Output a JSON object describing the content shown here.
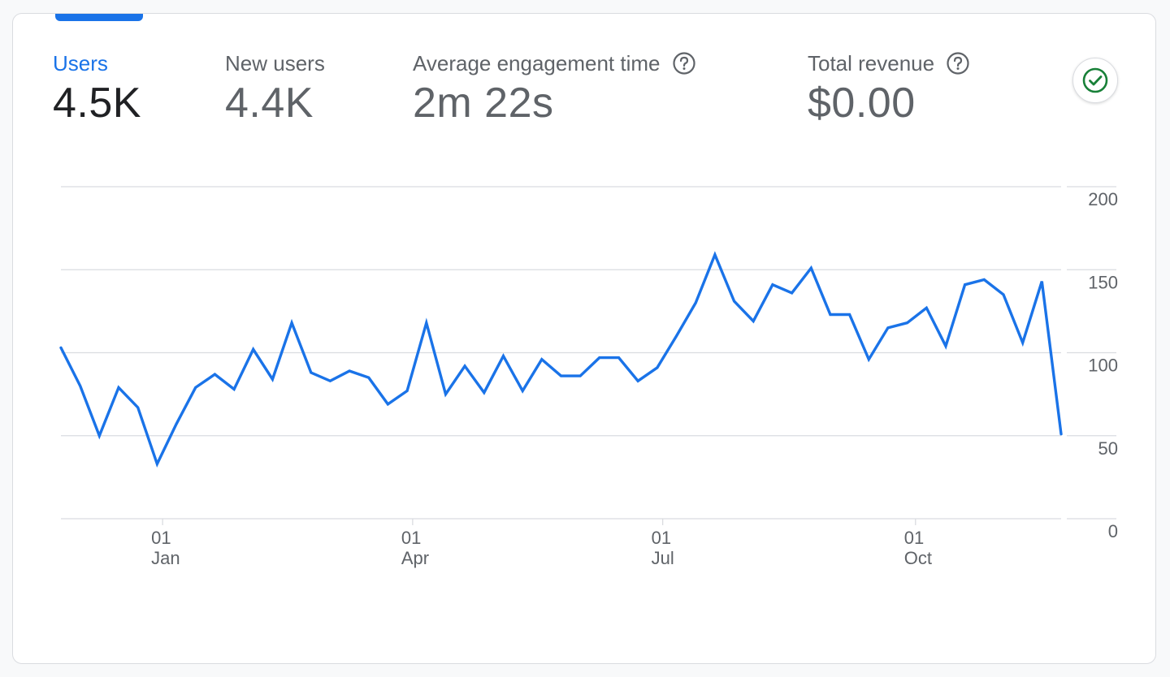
{
  "metrics": [
    {
      "label": "Users",
      "value": "4.5K",
      "active": true,
      "help": false
    },
    {
      "label": "New users",
      "value": "4.4K",
      "active": false,
      "help": false
    },
    {
      "label": "Average engagement time",
      "value": "2m 22s",
      "active": false,
      "help": true
    },
    {
      "label": "Total revenue",
      "value": "$0.00",
      "active": false,
      "help": true
    }
  ],
  "status": {
    "icon": "check-circle-icon",
    "color": "#188038"
  },
  "colors": {
    "accent": "#1a73e8",
    "series": "#1a73e8"
  },
  "chart_data": {
    "type": "line",
    "series": [
      {
        "x": [
          "2023-11-25",
          "2023-12-02",
          "2023-12-09",
          "2023-12-16",
          "2023-12-23",
          "2023-12-30",
          "2024-01-06",
          "2024-01-13",
          "2024-01-20",
          "2024-01-27",
          "2024-02-03",
          "2024-02-10",
          "2024-02-17",
          "2024-02-24",
          "2024-03-02",
          "2024-03-09",
          "2024-03-16",
          "2024-03-23",
          "2024-03-30",
          "2024-04-06",
          "2024-04-13",
          "2024-04-20",
          "2024-04-27",
          "2024-05-04",
          "2024-05-11",
          "2024-05-18",
          "2024-05-25",
          "2024-06-01",
          "2024-06-08",
          "2024-06-15",
          "2024-06-22",
          "2024-06-29",
          "2024-07-06",
          "2024-07-13",
          "2024-07-20",
          "2024-07-27",
          "2024-08-03",
          "2024-08-10",
          "2024-08-17",
          "2024-08-24",
          "2024-08-31",
          "2024-09-07",
          "2024-09-14",
          "2024-09-21",
          "2024-09-28",
          "2024-10-05",
          "2024-10-12",
          "2024-10-19",
          "2024-10-26",
          "2024-11-02",
          "2024-11-09",
          "2024-11-16",
          "2024-11-23"
        ],
        "values": [
          103,
          80,
          50,
          79,
          67,
          33,
          57,
          79,
          87,
          78,
          102,
          84,
          118,
          88,
          83,
          89,
          85,
          69,
          77,
          118,
          75,
          92,
          76,
          98,
          77,
          96,
          86,
          86,
          97,
          97,
          83,
          91,
          110,
          130,
          159,
          131,
          119,
          141,
          136,
          151,
          123,
          123,
          96,
          115,
          118,
          127,
          104,
          141,
          144,
          135,
          106,
          143,
          51
        ]
      }
    ],
    "yticks": [
      0,
      50,
      100,
      150,
      200
    ],
    "ylim": [
      0,
      200
    ],
    "xlim": [
      "2023-11-25",
      "2024-11-23"
    ],
    "xticks": [
      {
        "date": "2024-01-01",
        "day": "01",
        "month": "Jan"
      },
      {
        "date": "2024-04-01",
        "day": "01",
        "month": "Apr"
      },
      {
        "date": "2024-07-01",
        "day": "01",
        "month": "Jul"
      },
      {
        "date": "2024-10-01",
        "day": "01",
        "month": "Oct"
      }
    ],
    "grid": true,
    "y_axis_side": "right"
  }
}
